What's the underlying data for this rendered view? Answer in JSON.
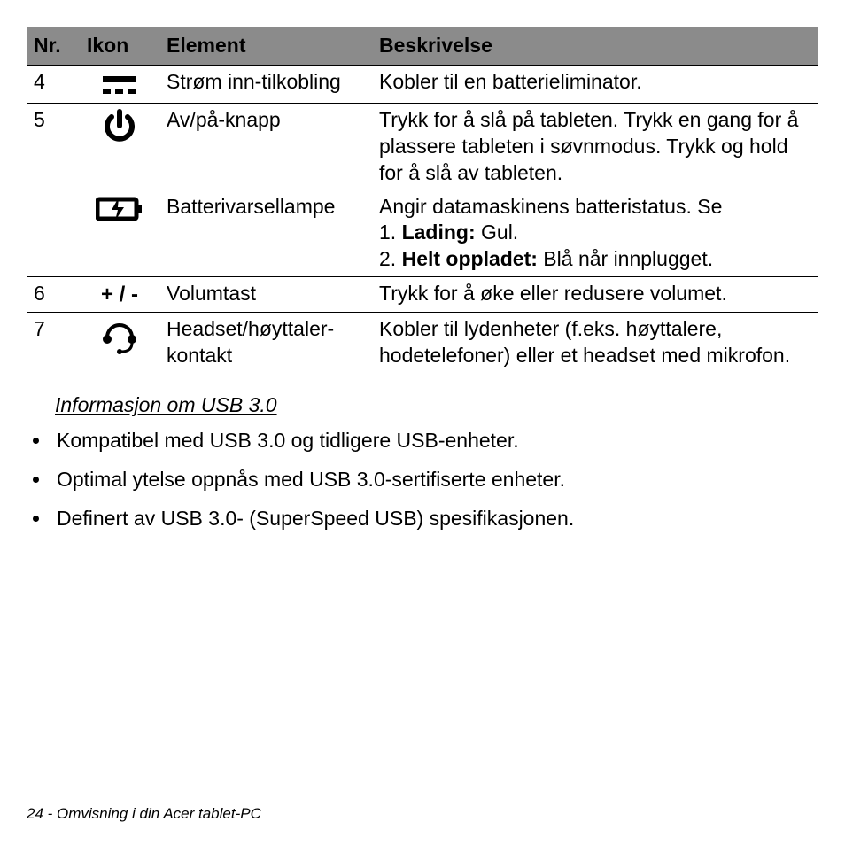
{
  "table": {
    "header_bg": "#8b8b8b",
    "columns": [
      "Nr.",
      "Ikon",
      "Element",
      "Beskrivelse"
    ],
    "rows": [
      {
        "nr": "4",
        "icon": "dc-power-icon",
        "element": "Strøm inn-tilkobling",
        "desc_plain": "Kobler til en batterieliminator.",
        "topborder": false
      },
      {
        "nr": "5",
        "icon": "power-icon",
        "element": "Av/på-knapp",
        "desc_plain": "Trykk for å slå på tableten. Trykk en gang for å plassere tableten i søvnmodus. Trykk og hold for å slå av tableten.",
        "topborder": true
      },
      {
        "nr": "",
        "icon": "battery-charge-icon",
        "element": "Batterivarsellampe",
        "desc_parts": [
          {
            "text": "Angir datamaskinens batteristatus. Se",
            "bold": false,
            "break": true
          },
          {
            "text": "1. ",
            "bold": false
          },
          {
            "text": "Lading:",
            "bold": true
          },
          {
            "text": " Gul.",
            "bold": false,
            "break": true
          },
          {
            "text": "2. ",
            "bold": false
          },
          {
            "text": "Helt oppladet:",
            "bold": true
          },
          {
            "text": " Blå når innplugget.",
            "bold": false
          }
        ],
        "topborder": false
      },
      {
        "nr": "6",
        "icon": "plus-minus-icon",
        "element": "Volumtast",
        "desc_plain": "Trykk for å øke eller redusere volumet.",
        "topborder": true
      },
      {
        "nr": "7",
        "icon": "headset-icon",
        "element": "Headset/høyttaler-kontakt",
        "desc_plain": "Kobler til lydenheter (f.eks. høyttalere, hodetelefoner) eller et headset med mikrofon.",
        "topborder": true
      }
    ]
  },
  "usb_section": {
    "heading": "Informasjon om USB 3.0",
    "bullets": [
      "Kompatibel med USB 3.0 og tidligere USB-enheter.",
      "Optimal ytelse oppnås med USB 3.0-sertifiserte enheter.",
      "Definert av USB 3.0- (SuperSpeed USB) spesifikasjonen."
    ]
  },
  "footer": "24 - Omvisning i din Acer tablet-PC",
  "icons": {
    "plus_minus_text": "+ / -"
  }
}
